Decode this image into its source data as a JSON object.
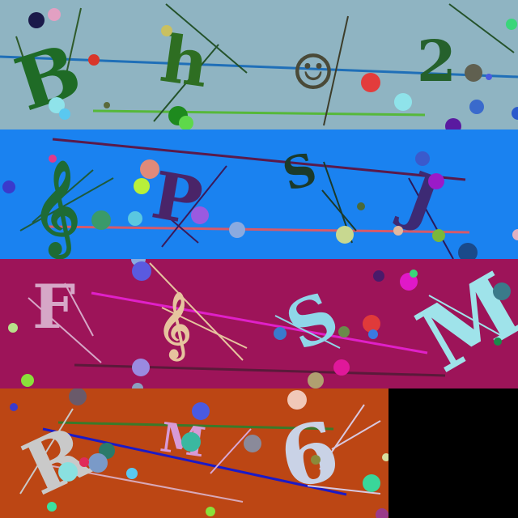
{
  "bands": [
    {
      "background": "#8fb4c2",
      "glyphs": [
        {
          "text": "B",
          "color": "#1f6b26"
        },
        {
          "text": "h",
          "color": "#2e6e22"
        },
        {
          "text": "☺",
          "color": "#4a4a38"
        },
        {
          "text": "2",
          "color": "#25612c"
        }
      ]
    },
    {
      "background": "#1a82f0",
      "glyphs": [
        {
          "text": "𝄞",
          "color": "#1e6b35"
        },
        {
          "text": "P",
          "color": "#4a2468"
        },
        {
          "text": "S",
          "color": "#1b3a2a"
        },
        {
          "text": "J",
          "color": "#3d2a74"
        }
      ]
    },
    {
      "background": "#9d1459",
      "glyphs": [
        {
          "text": "F",
          "color": "#d6a7c7"
        },
        {
          "text": "𝄞",
          "color": "#e6c49e"
        },
        {
          "text": "S",
          "color": "#8fd6e8"
        },
        {
          "text": "M",
          "color": "#9fe3ea"
        }
      ]
    },
    {
      "background": "#bc4614",
      "glyphs": [
        {
          "text": "R",
          "color": "#c9c9c9"
        },
        {
          "text": "M",
          "color": "#d79ad6"
        },
        {
          "text": "6",
          "color": "#c9d2e6"
        }
      ]
    }
  ],
  "empty_region": {
    "color": "#000000"
  }
}
